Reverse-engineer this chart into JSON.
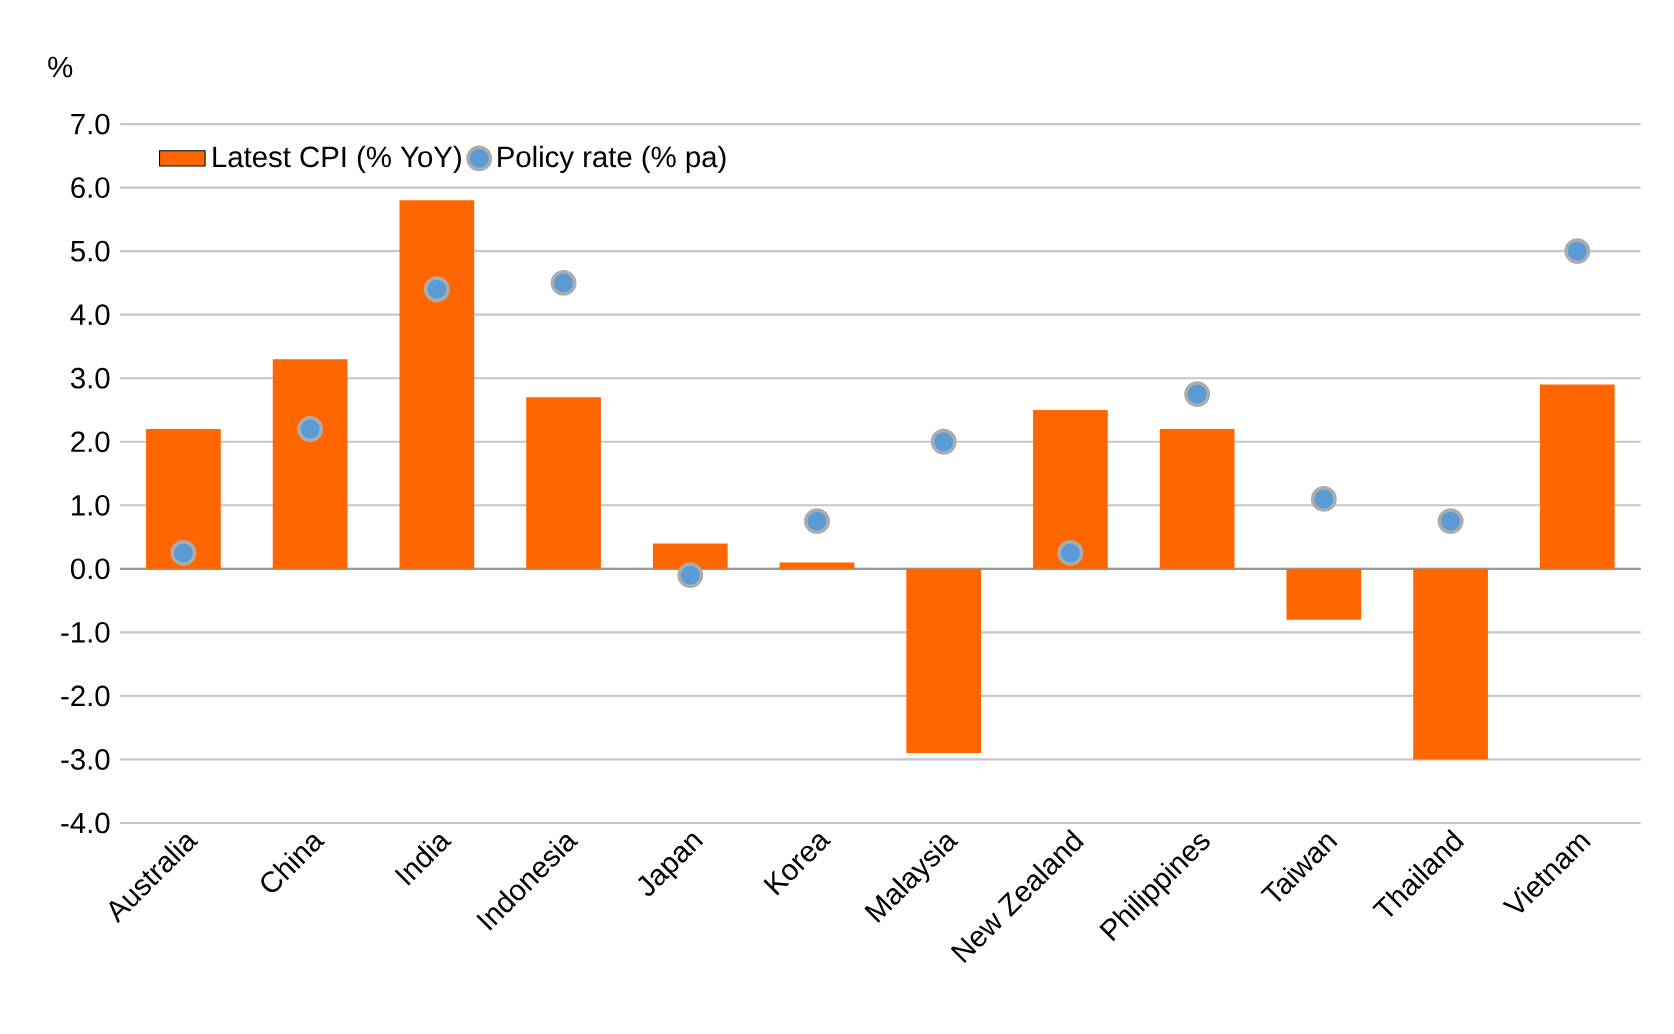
{
  "chart_data": {
    "type": "bar",
    "ylabel": "%",
    "categories": [
      "Australia",
      "China",
      "India",
      "Indonesia",
      "Japan",
      "Korea",
      "Malaysia",
      "New Zealand",
      "Philippines",
      "Taiwan",
      "Thailand",
      "Vietnam"
    ],
    "series": [
      {
        "name": "Latest CPI (% YoY)",
        "color": "#ff6600",
        "values": [
          2.2,
          3.3,
          5.8,
          2.7,
          0.4,
          0.1,
          -2.9,
          2.5,
          2.2,
          -0.8,
          -3.0,
          2.9
        ]
      },
      {
        "name": "Policy rate (% pa)",
        "type": "scatter",
        "color": "#5b9bd5",
        "values": [
          0.25,
          2.2,
          4.4,
          4.5,
          -0.1,
          0.75,
          2.0,
          0.25,
          2.75,
          1.1,
          0.75,
          5.0
        ]
      }
    ],
    "ylim": [
      -4,
      7
    ],
    "yticks": [
      {
        "value": -4,
        "label": "-4.0"
      },
      {
        "value": -3,
        "label": "-3.0"
      },
      {
        "value": -2,
        "label": "-2.0"
      },
      {
        "value": -1,
        "label": "-1.0"
      },
      {
        "value": 0,
        "label": "0.0"
      },
      {
        "value": 1,
        "label": "1.0"
      },
      {
        "value": 2,
        "label": "2.0"
      },
      {
        "value": 3,
        "label": "3.0"
      },
      {
        "value": 4,
        "label": "4.0"
      },
      {
        "value": 5,
        "label": "5.0"
      },
      {
        "value": 6,
        "label": "6.0"
      },
      {
        "value": 7,
        "label": "7.0"
      }
    ],
    "grid": "y",
    "legend": "top left"
  }
}
